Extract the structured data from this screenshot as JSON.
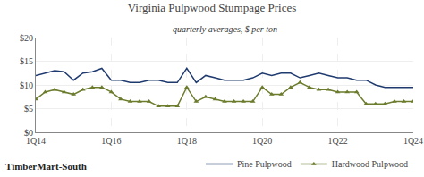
{
  "chart_data": {
    "type": "line",
    "title": "Virginia Pulpwood Stumpage Prices",
    "subtitle": "quarterly averages, $ per ton",
    "annotations": [
      "TimberMart-South"
    ],
    "categories": [
      "1Q14",
      null,
      null,
      null,
      null,
      null,
      null,
      null,
      "1Q16",
      null,
      null,
      null,
      null,
      null,
      null,
      null,
      "1Q18",
      null,
      null,
      null,
      null,
      null,
      null,
      null,
      "1Q20",
      null,
      null,
      null,
      null,
      null,
      null,
      null,
      "1Q22",
      null,
      null,
      null,
      null,
      null,
      null,
      null,
      "1Q24"
    ],
    "series": [
      {
        "name": "Pine Pulpwood",
        "color": "#1f3a6e",
        "values": [
          12.0,
          12.5,
          13.0,
          12.8,
          11.0,
          12.5,
          12.8,
          13.5,
          11.0,
          11.0,
          10.5,
          10.5,
          11.0,
          11.0,
          10.5,
          10.5,
          13.5,
          10.5,
          12.0,
          11.5,
          11.0,
          11.0,
          11.0,
          11.5,
          12.5,
          12.0,
          12.5,
          12.5,
          11.5,
          12.0,
          12.5,
          12.0,
          11.5,
          11.5,
          11.0,
          11.0,
          10.0,
          9.5,
          9.5,
          9.5,
          9.5
        ]
      },
      {
        "name": "Hardwood Pulpwood",
        "color": "#6b7c2d",
        "marker": "triangle-up",
        "values": [
          7.0,
          8.5,
          9.0,
          8.5,
          8.0,
          9.0,
          9.5,
          9.5,
          8.5,
          7.0,
          6.5,
          6.5,
          6.5,
          5.5,
          5.5,
          5.5,
          9.5,
          6.5,
          7.5,
          7.0,
          6.5,
          6.5,
          6.5,
          6.5,
          9.5,
          8.0,
          8.0,
          9.5,
          10.5,
          9.5,
          9.0,
          9.0,
          8.5,
          8.5,
          8.5,
          6.0,
          6.0,
          6.0,
          6.5,
          6.5,
          6.5
        ]
      }
    ],
    "ylim": [
      0,
      20
    ],
    "yticks": [
      {
        "value": 0,
        "label": "$0"
      },
      {
        "value": 5,
        "label": "$5"
      },
      {
        "value": 10,
        "label": "$10"
      },
      {
        "value": 15,
        "label": "$15"
      },
      {
        "value": 20,
        "label": "$20"
      }
    ],
    "grid": true,
    "legend": "bottom"
  }
}
